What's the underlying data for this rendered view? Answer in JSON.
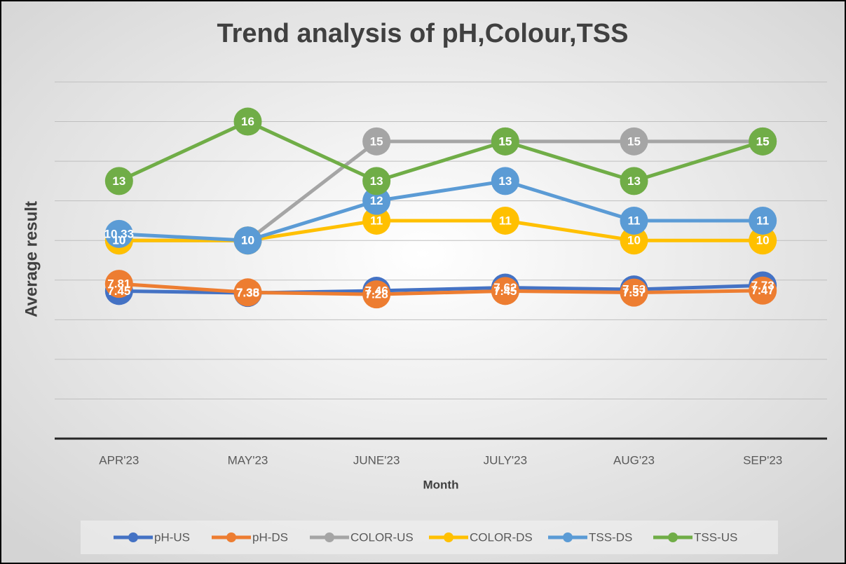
{
  "chart_data": {
    "type": "line",
    "title": "Trend analysis of pH,Colour,TSS",
    "xlabel": "Month",
    "ylabel": "Average result",
    "categories": [
      "APR'23",
      "MAY'23",
      "JUNE'23",
      "JULY'23",
      "AUG'23",
      "SEP'23"
    ],
    "series": [
      {
        "name": "pH-US",
        "color": "#4472c4",
        "values": [
          7.45,
          7.35,
          7.46,
          7.62,
          7.53,
          7.73
        ]
      },
      {
        "name": "pH-DS",
        "color": "#ed7d31",
        "values": [
          7.81,
          7.38,
          7.28,
          7.45,
          7.37,
          7.47
        ]
      },
      {
        "name": "COLOR-US",
        "color": "#a5a5a5",
        "values": [
          10,
          10,
          15,
          15,
          15,
          15
        ]
      },
      {
        "name": "COLOR-DS",
        "color": "#ffc000",
        "values": [
          10,
          10,
          11,
          11,
          10,
          10
        ]
      },
      {
        "name": "TSS-DS",
        "color": "#5b9bd5",
        "values": [
          10.33,
          10,
          12,
          13,
          11,
          11
        ]
      },
      {
        "name": "TSS-US",
        "color": "#70ad47",
        "values": [
          13,
          16,
          13,
          15,
          13,
          15
        ]
      }
    ],
    "ylim": [
      0,
      18
    ],
    "yticks": [
      0,
      2,
      4,
      6,
      8,
      10,
      12,
      14,
      16,
      18
    ],
    "grid": true,
    "legend": "bottom"
  }
}
